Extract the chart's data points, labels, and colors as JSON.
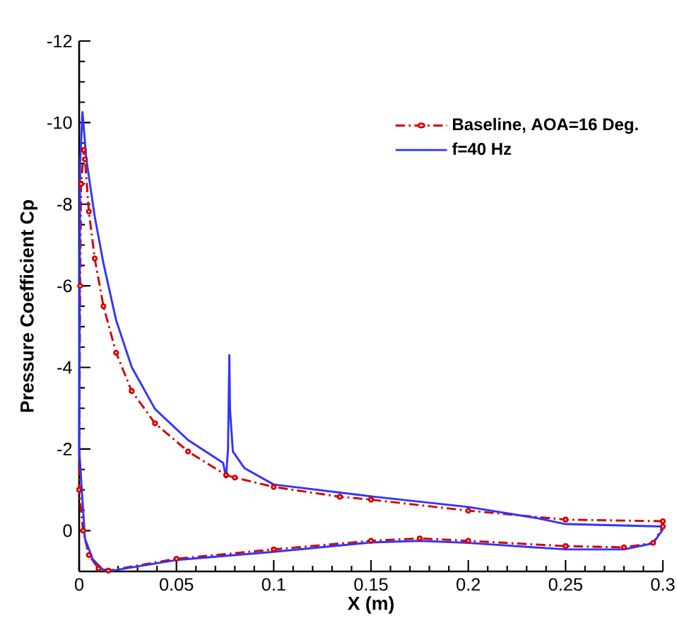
{
  "chart_data": {
    "type": "line",
    "xlabel": "X (m)",
    "ylabel": "Pressure Coefficient  Cp",
    "xlim": [
      0,
      0.3
    ],
    "ylim": [
      1,
      -12
    ],
    "xticks": [
      0,
      0.05,
      0.1,
      0.15,
      0.2,
      0.25,
      0.3
    ],
    "yticks": [
      -12,
      -10,
      -8,
      -6,
      -4,
      -2,
      0
    ],
    "grid": false,
    "legend": "top right",
    "series": [
      {
        "name": "Baseline, AOA=16 Deg.",
        "color": "#d40000",
        "marker": "circle",
        "line_style": "dashdot",
        "x": [
          0.3,
          0.25,
          0.2,
          0.15,
          0.134,
          0.1,
          0.08,
          0.0755,
          0.056,
          0.039,
          0.027,
          0.019,
          0.0125,
          0.008,
          0.005,
          0.003,
          0.0024,
          0.001,
          0.0005,
          0,
          0.002,
          0.005,
          0.01,
          0.015,
          0.05,
          0.1,
          0.15,
          0.175,
          0.2,
          0.25,
          0.28,
          0.295,
          0.3
        ],
        "values": [
          -0.23,
          -0.27,
          -0.49,
          -0.76,
          -0.83,
          -1.07,
          -1.3,
          -1.36,
          -1.94,
          -2.63,
          -3.42,
          -4.36,
          -5.5,
          -6.67,
          -7.82,
          -9.1,
          -9.33,
          -8.5,
          -6,
          -1,
          0,
          0.6,
          0.93,
          0.98,
          0.69,
          0.46,
          0.25,
          0.19,
          0.25,
          0.38,
          0.41,
          0.3,
          -0.1
        ]
      },
      {
        "name": "f=40 Hz",
        "color": "#3333ff",
        "line_style": "solid",
        "x": [
          0.3,
          0.25,
          0.235,
          0.2,
          0.15,
          0.1,
          0.085,
          0.079,
          0.0775,
          0.0772,
          0.0765,
          0.0755,
          0.074,
          0.056,
          0.039,
          0.027,
          0.019,
          0.0125,
          0.008,
          0.0037,
          0.0017,
          0.0005,
          0,
          0.003,
          0.007,
          0.012,
          0.017,
          0.05,
          0.1,
          0.15,
          0.175,
          0.2,
          0.25,
          0.28,
          0.295,
          0.3
        ],
        "values": [
          -0.1,
          -0.16,
          -0.31,
          -0.58,
          -0.84,
          -1.13,
          -1.53,
          -1.94,
          -3,
          -4.3,
          -2,
          -1.3,
          -1.66,
          -2.22,
          -2.98,
          -4.01,
          -5.16,
          -6.55,
          -7.7,
          -9.1,
          -10.26,
          -9,
          -2,
          0.2,
          0.7,
          0.95,
          0.98,
          0.72,
          0.52,
          0.29,
          0.25,
          0.3,
          0.46,
          0.46,
          0.31,
          -0.03
        ]
      }
    ]
  }
}
